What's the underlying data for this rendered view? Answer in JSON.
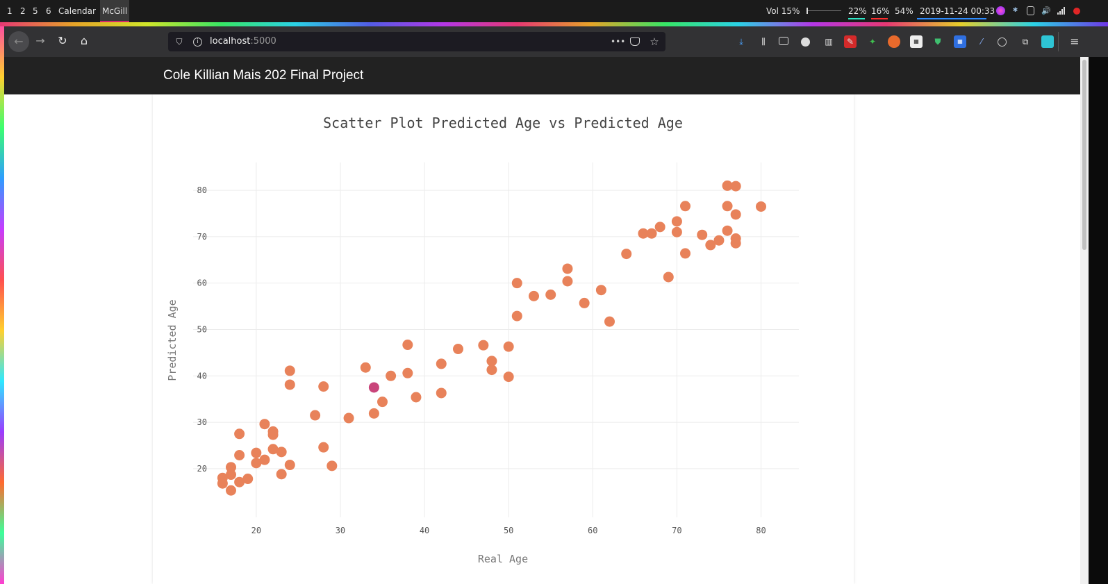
{
  "topbar": {
    "workspaces": [
      {
        "label": "1",
        "active": false
      },
      {
        "label": "2",
        "active": false
      },
      {
        "label": "5",
        "active": false
      },
      {
        "label": "6",
        "active": false
      },
      {
        "label": "Calendar",
        "active": false
      },
      {
        "label": "McGill",
        "active": true
      }
    ],
    "volume": "Vol 15%",
    "cpu": "22%",
    "mem": "16%",
    "battery": "54%",
    "datetime": "2019-11-24 00:33"
  },
  "browser": {
    "url_host": "localhost",
    "url_port": ":5000"
  },
  "site": {
    "title": "Cole Killian Mais 202 Final Project"
  },
  "colors": {
    "marker": "#e8825a",
    "highlight": "#c9457b",
    "header": "#222222"
  },
  "chart_data": {
    "type": "scatter",
    "title": "Scatter Plot Predicted Age vs Predicted Age",
    "xlabel": "Real Age",
    "ylabel": "Predicted Age",
    "xlim": [
      12.5,
      84.5
    ],
    "ylim": [
      9.5,
      86
    ],
    "xticks": [
      20,
      30,
      40,
      50,
      60,
      70,
      80
    ],
    "yticks": [
      20,
      30,
      40,
      50,
      60,
      70,
      80
    ],
    "grid": true,
    "legend": "none",
    "points": [
      {
        "x": 16,
        "y": 18
      },
      {
        "x": 16,
        "y": 16.8
      },
      {
        "x": 17,
        "y": 20.3
      },
      {
        "x": 17,
        "y": 18.7
      },
      {
        "x": 17,
        "y": 15.3
      },
      {
        "x": 18,
        "y": 27.5
      },
      {
        "x": 18,
        "y": 22.9
      },
      {
        "x": 18,
        "y": 17.1
      },
      {
        "x": 19,
        "y": 17.8
      },
      {
        "x": 20,
        "y": 23.4
      },
      {
        "x": 20,
        "y": 21.2
      },
      {
        "x": 21,
        "y": 29.6
      },
      {
        "x": 21,
        "y": 21.9
      },
      {
        "x": 22,
        "y": 28.0
      },
      {
        "x": 22,
        "y": 27.3
      },
      {
        "x": 22,
        "y": 24.2
      },
      {
        "x": 23,
        "y": 23.6
      },
      {
        "x": 23,
        "y": 18.8
      },
      {
        "x": 24,
        "y": 41.1
      },
      {
        "x": 24,
        "y": 38.1
      },
      {
        "x": 24,
        "y": 20.8
      },
      {
        "x": 27,
        "y": 31.5
      },
      {
        "x": 28,
        "y": 37.7
      },
      {
        "x": 28,
        "y": 24.6
      },
      {
        "x": 29,
        "y": 20.6
      },
      {
        "x": 31,
        "y": 30.9
      },
      {
        "x": 33,
        "y": 41.8
      },
      {
        "x": 34,
        "y": 31.9
      },
      {
        "x": 35,
        "y": 34.4
      },
      {
        "x": 36,
        "y": 40.0
      },
      {
        "x": 38,
        "y": 46.7
      },
      {
        "x": 38,
        "y": 40.6
      },
      {
        "x": 39,
        "y": 35.4
      },
      {
        "x": 42,
        "y": 42.6
      },
      {
        "x": 42,
        "y": 36.3
      },
      {
        "x": 44,
        "y": 45.8
      },
      {
        "x": 47,
        "y": 46.6
      },
      {
        "x": 48,
        "y": 43.2
      },
      {
        "x": 48,
        "y": 41.3
      },
      {
        "x": 50,
        "y": 46.3
      },
      {
        "x": 50,
        "y": 39.8
      },
      {
        "x": 51,
        "y": 60.0
      },
      {
        "x": 51,
        "y": 52.9
      },
      {
        "x": 53,
        "y": 57.2
      },
      {
        "x": 55,
        "y": 57.5
      },
      {
        "x": 57,
        "y": 63.1
      },
      {
        "x": 57,
        "y": 60.4
      },
      {
        "x": 59,
        "y": 55.7
      },
      {
        "x": 61,
        "y": 58.5
      },
      {
        "x": 62,
        "y": 51.7
      },
      {
        "x": 64,
        "y": 66.3
      },
      {
        "x": 66,
        "y": 70.7
      },
      {
        "x": 67,
        "y": 70.7
      },
      {
        "x": 68,
        "y": 72.1
      },
      {
        "x": 69,
        "y": 61.3
      },
      {
        "x": 70,
        "y": 73.3
      },
      {
        "x": 70,
        "y": 71.0
      },
      {
        "x": 71,
        "y": 76.6
      },
      {
        "x": 71,
        "y": 66.4
      },
      {
        "x": 73,
        "y": 70.4
      },
      {
        "x": 74,
        "y": 68.2
      },
      {
        "x": 75,
        "y": 69.2
      },
      {
        "x": 76,
        "y": 81.0
      },
      {
        "x": 76,
        "y": 76.6
      },
      {
        "x": 76,
        "y": 71.3
      },
      {
        "x": 77,
        "y": 80.9
      },
      {
        "x": 77,
        "y": 74.8
      },
      {
        "x": 77,
        "y": 69.6
      },
      {
        "x": 77,
        "y": 68.6
      },
      {
        "x": 80,
        "y": 76.5
      }
    ],
    "highlight_point": {
      "x": 34,
      "y": 37.5
    }
  }
}
